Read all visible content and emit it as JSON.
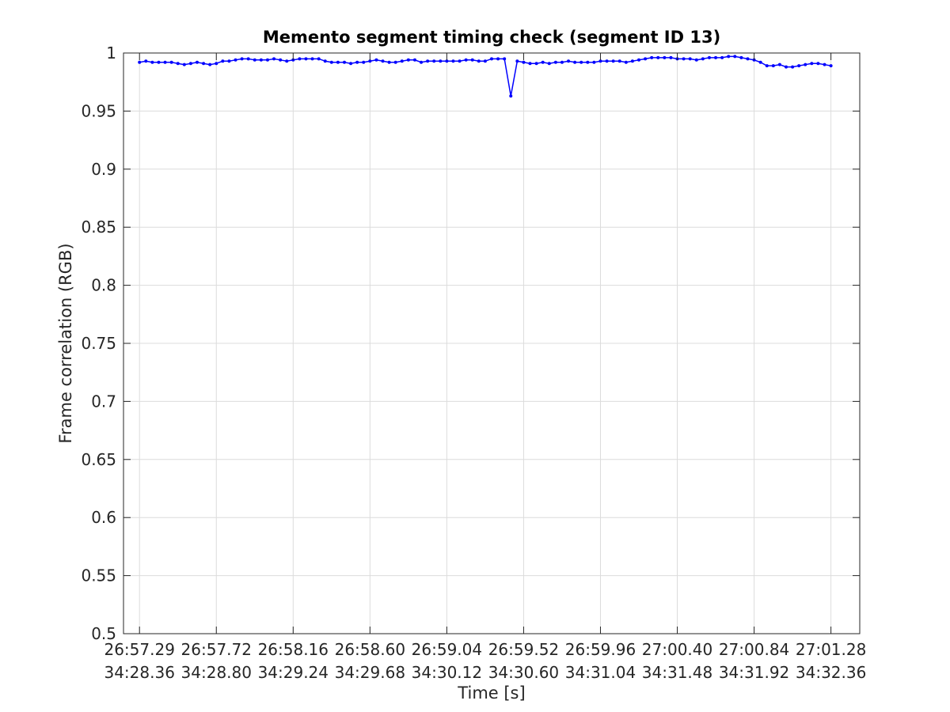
{
  "chart_data": {
    "type": "line",
    "title": "Memento segment timing check (segment ID 13)",
    "xlabel": "Time [s]",
    "ylabel": "Frame correlation (RGB)",
    "ylim": [
      0.5,
      1.0
    ],
    "xlim": [
      -0.1,
      4.5
    ],
    "grid": true,
    "y_ticks": [
      0.5,
      0.55,
      0.6,
      0.65,
      0.7,
      0.75,
      0.8,
      0.85,
      0.9,
      0.95,
      1
    ],
    "y_tick_labels": [
      "0.5",
      "0.55",
      "0.6",
      "0.65",
      "0.7",
      "0.75",
      "0.8",
      "0.85",
      "0.9",
      "0.95",
      "1"
    ],
    "x_ticks": [
      0,
      0.48,
      0.96,
      1.44,
      1.92,
      2.4,
      2.88,
      3.36,
      3.84,
      4.32
    ],
    "x_tick_labels_top": [
      "26:57.29",
      "26:57.72",
      "26:58.16",
      "26:58.60",
      "26:59.04",
      "26:59.52",
      "26:59.96",
      "27:00.40",
      "27:00.84",
      "27:01.28"
    ],
    "x_tick_labels_bottom": [
      "34:28.36",
      "34:28.80",
      "34:29.24",
      "34:29.68",
      "34:30.12",
      "34:30.60",
      "34:31.04",
      "34:31.48",
      "34:31.92",
      "34:32.36"
    ],
    "series": [
      {
        "color": "#0000ff",
        "x": [
          0,
          0.04,
          0.08,
          0.12,
          0.16,
          0.2,
          0.24,
          0.28,
          0.32,
          0.36,
          0.4,
          0.44,
          0.48,
          0.52,
          0.56,
          0.6,
          0.64,
          0.68,
          0.72,
          0.76,
          0.8,
          0.84,
          0.88,
          0.92,
          0.96,
          1,
          1.04,
          1.08,
          1.12,
          1.16,
          1.2,
          1.24,
          1.28,
          1.32,
          1.36,
          1.4,
          1.44,
          1.48,
          1.52,
          1.56,
          1.6,
          1.64,
          1.68,
          1.72,
          1.76,
          1.8,
          1.84,
          1.88,
          1.92,
          1.96,
          2,
          2.04,
          2.08,
          2.12,
          2.16,
          2.2,
          2.24,
          2.28,
          2.32,
          2.36,
          2.4,
          2.44,
          2.48,
          2.52,
          2.56,
          2.6,
          2.64,
          2.68,
          2.72,
          2.76,
          2.8,
          2.84,
          2.88,
          2.92,
          2.96,
          3,
          3.04,
          3.08,
          3.12,
          3.16,
          3.2,
          3.24,
          3.28,
          3.32,
          3.36,
          3.4,
          3.44,
          3.48,
          3.52,
          3.56,
          3.6,
          3.64,
          3.68,
          3.72,
          3.76,
          3.8,
          3.84,
          3.88,
          3.92,
          3.96,
          4,
          4.04,
          4.08,
          4.12,
          4.16,
          4.2,
          4.24,
          4.28,
          4.32
        ],
        "y": [
          0.992,
          0.993,
          0.992,
          0.992,
          0.992,
          0.992,
          0.991,
          0.99,
          0.991,
          0.992,
          0.991,
          0.99,
          0.991,
          0.993,
          0.993,
          0.994,
          0.995,
          0.995,
          0.994,
          0.994,
          0.994,
          0.995,
          0.994,
          0.993,
          0.994,
          0.995,
          0.995,
          0.995,
          0.995,
          0.993,
          0.992,
          0.992,
          0.992,
          0.991,
          0.992,
          0.992,
          0.993,
          0.994,
          0.993,
          0.992,
          0.992,
          0.993,
          0.994,
          0.994,
          0.992,
          0.993,
          0.993,
          0.993,
          0.993,
          0.993,
          0.993,
          0.994,
          0.994,
          0.993,
          0.993,
          0.995,
          0.995,
          0.995,
          0.963,
          0.993,
          0.992,
          0.991,
          0.991,
          0.992,
          0.991,
          0.992,
          0.992,
          0.993,
          0.992,
          0.992,
          0.992,
          0.992,
          0.993,
          0.993,
          0.993,
          0.993,
          0.992,
          0.993,
          0.994,
          0.995,
          0.996,
          0.996,
          0.996,
          0.996,
          0.995,
          0.995,
          0.995,
          0.994,
          0.995,
          0.996,
          0.996,
          0.996,
          0.997,
          0.997,
          0.996,
          0.995,
          0.994,
          0.992,
          0.989,
          0.989,
          0.99,
          0.988,
          0.988,
          0.989,
          0.99,
          0.991,
          0.991,
          0.99,
          0.989
        ]
      }
    ]
  }
}
